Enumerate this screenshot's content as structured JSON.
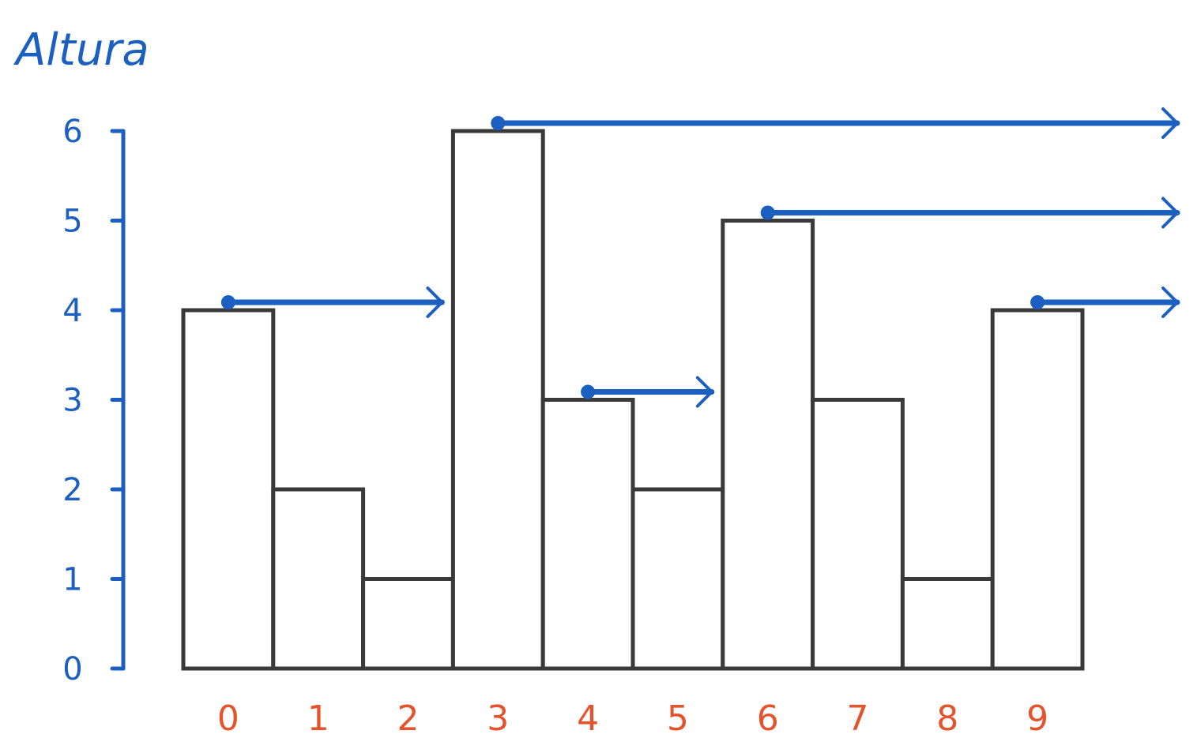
{
  "chart_data": {
    "type": "bar",
    "ylabel": "Altura",
    "xlabel": "",
    "categories": [
      "0",
      "1",
      "2",
      "3",
      "4",
      "5",
      "6",
      "7",
      "8",
      "9"
    ],
    "values": [
      4,
      2,
      1,
      6,
      3,
      2,
      5,
      3,
      1,
      4
    ],
    "yticks": [
      "0",
      "1",
      "2",
      "3",
      "4",
      "5",
      "6"
    ],
    "ylim": [
      0,
      6
    ],
    "grid": false,
    "next_greater_arrows": [
      {
        "from": 0,
        "to": 3,
        "height": 4
      },
      {
        "from": 3,
        "to": null,
        "height": 6
      },
      {
        "from": 4,
        "to": 6,
        "height": 3
      },
      {
        "from": 6,
        "to": null,
        "height": 5
      },
      {
        "from": 9,
        "to": null,
        "height": 4
      }
    ],
    "colors": {
      "axis": "#1b5fc1",
      "arrows": "#1b5fc1",
      "x_labels": "#e5532d",
      "bar_stroke": "#3a3a3a"
    }
  }
}
